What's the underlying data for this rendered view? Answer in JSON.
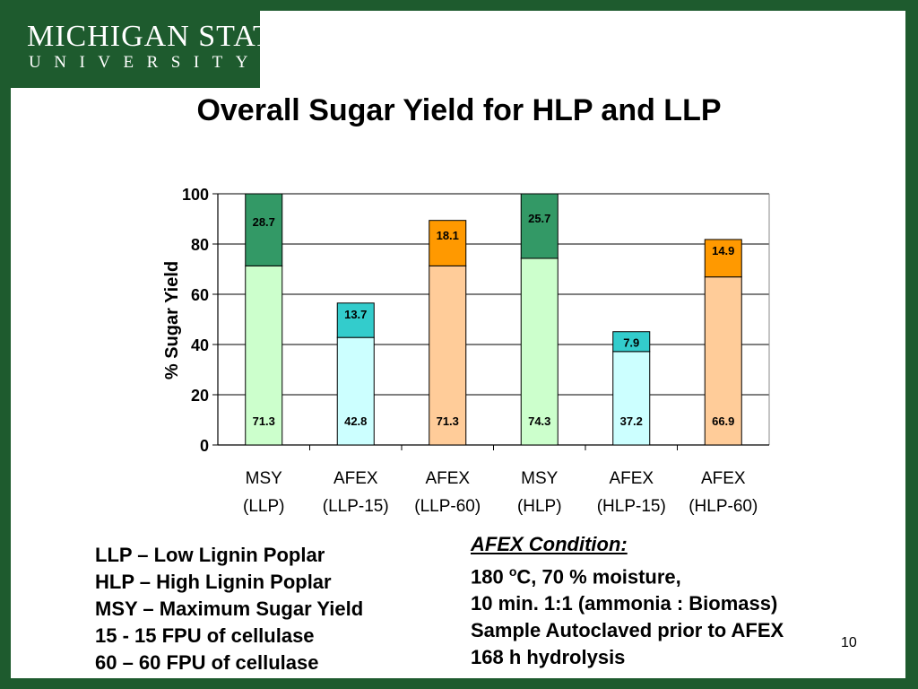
{
  "logo": {
    "line1": "MICHIGAN STATE",
    "line2": "UNIVERSITY"
  },
  "slide": {
    "title": "Overall Sugar Yield for HLP and LLP",
    "page_number": "10"
  },
  "colors": {
    "frame": "#1E5B2E",
    "msy_base": "#CCFFCC",
    "msy_top": "#339966",
    "afex15_base": "#CCFFFF",
    "afex15_top": "#33CCCC",
    "afex60_base": "#FFCC99",
    "afex60_top": "#FF9900"
  },
  "chart_data": {
    "type": "bar",
    "stacked": true,
    "ylabel": "% Sugar Yield",
    "xlabel": "",
    "ylim": [
      0,
      100
    ],
    "yticks": [
      "0",
      "20",
      "40",
      "60",
      "80",
      "100"
    ],
    "grid": true,
    "legend": "none",
    "categories": [
      [
        "MSY",
        "(LLP)"
      ],
      [
        "AFEX",
        "(LLP-15)"
      ],
      [
        "AFEX",
        "(LLP-60)"
      ],
      [
        "MSY",
        "(HLP)"
      ],
      [
        "AFEX",
        "(HLP-15)"
      ],
      [
        "AFEX",
        "(HLP-60)"
      ]
    ],
    "series": [
      {
        "values": [
          71.3,
          42.8,
          71.3,
          74.3,
          37.2,
          66.9
        ],
        "labels": [
          "71.3",
          "42.8",
          "71.3",
          "74.3",
          "37.2",
          "66.9"
        ]
      },
      {
        "values": [
          28.7,
          13.7,
          18.1,
          25.7,
          7.9,
          14.9
        ],
        "labels": [
          "28.7",
          "13.7",
          "18.1",
          "25.7",
          "7.9",
          "14.9"
        ]
      }
    ],
    "bar_colors": [
      [
        "#CCFFCC",
        "#339966"
      ],
      [
        "#CCFFFF",
        "#33CCCC"
      ],
      [
        "#FFCC99",
        "#FF9900"
      ],
      [
        "#CCFFCC",
        "#339966"
      ],
      [
        "#CCFFFF",
        "#33CCCC"
      ],
      [
        "#FFCC99",
        "#FF9900"
      ]
    ]
  },
  "definitions": [
    "LLP – Low Lignin Poplar",
    "HLP – High Lignin Poplar",
    "MSY – Maximum Sugar Yield",
    "15 - 15 FPU of cellulase",
    "60 – 60 FPU of cellulase"
  ],
  "afex_condition": {
    "title": "AFEX Condition:",
    "line1_prefix": "180 ",
    "line1_sup": "o",
    "line1_suffix": "C, 70 % moisture,",
    "line2": "10 min. 1:1 (ammonia : Biomass)",
    "line3": "Sample Autoclaved prior to AFEX",
    "line4": "168 h hydrolysis"
  }
}
